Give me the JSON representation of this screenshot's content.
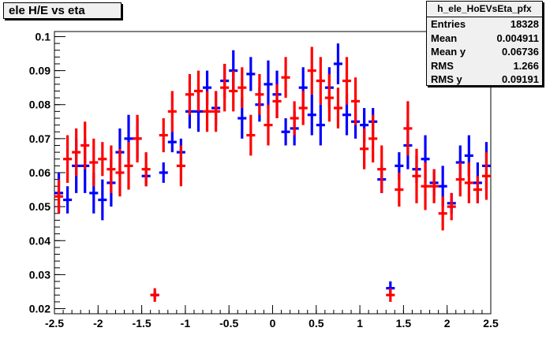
{
  "title": "ele H/E vs eta",
  "stats": {
    "name": "h_ele_HoEVsEta_pfx",
    "rows": [
      {
        "label": "Entries",
        "value": "18328"
      },
      {
        "label": "Mean",
        "value": "0.004911"
      },
      {
        "label": "Mean y",
        "value": "0.06736"
      },
      {
        "label": "RMS",
        "value": "1.266"
      },
      {
        "label": "RMS y",
        "value": "0.09191"
      }
    ]
  },
  "chart_data": {
    "type": "scatter",
    "title": "ele H/E vs eta",
    "xlabel": "",
    "ylabel": "",
    "xlim": [
      -2.5,
      2.5
    ],
    "ylim": [
      0.0185,
      0.1015
    ],
    "x_ticks": [
      "-2.5",
      "-2",
      "-1.5",
      "-1",
      "-0.5",
      "0",
      "0.5",
      "1",
      "1.5",
      "2",
      "2.5"
    ],
    "y_ticks": [
      "0.02",
      "0.03",
      "0.04",
      "0.05",
      "0.06",
      "0.07",
      "0.08",
      "0.09",
      "0.1"
    ],
    "bin_half_width": 0.05,
    "grid": false,
    "series": [
      {
        "color": "#0000ff",
        "points": [
          {
            "x": -2.45,
            "y": 0.054,
            "err": 0.006
          },
          {
            "x": -2.35,
            "y": 0.052,
            "err": 0.004
          },
          {
            "x": -2.25,
            "y": 0.062,
            "err": 0.008
          },
          {
            "x": -2.15,
            "y": 0.062,
            "err": 0.008
          },
          {
            "x": -2.05,
            "y": 0.054,
            "err": 0.006
          },
          {
            "x": -1.95,
            "y": 0.052,
            "err": 0.006
          },
          {
            "x": -1.85,
            "y": 0.057,
            "err": 0.007
          },
          {
            "x": -1.75,
            "y": 0.066,
            "err": 0.007
          },
          {
            "x": -1.65,
            "y": 0.07,
            "err": 0.007
          },
          {
            "x": -1.55,
            "y": 0.07,
            "err": 0.006
          },
          {
            "x": -1.45,
            "y": 0.059,
            "err": 0.003
          },
          {
            "x": -1.35,
            "y": 0.024,
            "err": 0.001
          },
          {
            "x": -1.25,
            "y": 0.06,
            "err": 0.003
          },
          {
            "x": -1.15,
            "y": 0.069,
            "err": 0.003
          },
          {
            "x": -1.05,
            "y": 0.066,
            "err": 0.004
          },
          {
            "x": -0.95,
            "y": 0.078,
            "err": 0.005
          },
          {
            "x": -0.85,
            "y": 0.078,
            "err": 0.006
          },
          {
            "x": -0.75,
            "y": 0.085,
            "err": 0.005
          },
          {
            "x": -0.65,
            "y": 0.079,
            "err": 0.005
          },
          {
            "x": -0.55,
            "y": 0.087,
            "err": 0.005
          },
          {
            "x": -0.45,
            "y": 0.09,
            "err": 0.006
          },
          {
            "x": -0.35,
            "y": 0.076,
            "err": 0.006
          },
          {
            "x": -0.25,
            "y": 0.089,
            "err": 0.005
          },
          {
            "x": -0.15,
            "y": 0.08,
            "err": 0.005
          },
          {
            "x": -0.05,
            "y": 0.086,
            "err": 0.007
          },
          {
            "x": 0.05,
            "y": 0.083,
            "err": 0.007
          },
          {
            "x": 0.15,
            "y": 0.072,
            "err": 0.004
          },
          {
            "x": 0.25,
            "y": 0.073,
            "err": 0.005
          },
          {
            "x": 0.35,
            "y": 0.085,
            "err": 0.006
          },
          {
            "x": 0.45,
            "y": 0.077,
            "err": 0.006
          },
          {
            "x": 0.55,
            "y": 0.074,
            "err": 0.006
          },
          {
            "x": 0.65,
            "y": 0.085,
            "err": 0.006
          },
          {
            "x": 0.75,
            "y": 0.092,
            "err": 0.006
          },
          {
            "x": 0.85,
            "y": 0.077,
            "err": 0.006
          },
          {
            "x": 0.95,
            "y": 0.075,
            "err": 0.005
          },
          {
            "x": 1.05,
            "y": 0.074,
            "err": 0.005
          },
          {
            "x": 1.15,
            "y": 0.075,
            "err": 0.004
          },
          {
            "x": 1.25,
            "y": 0.058,
            "err": 0.004
          },
          {
            "x": 1.35,
            "y": 0.026,
            "err": 0.002
          },
          {
            "x": 1.45,
            "y": 0.062,
            "err": 0.004
          },
          {
            "x": 1.55,
            "y": 0.068,
            "err": 0.007
          },
          {
            "x": 1.65,
            "y": 0.061,
            "err": 0.004
          },
          {
            "x": 1.75,
            "y": 0.064,
            "err": 0.007
          },
          {
            "x": 1.85,
            "y": 0.057,
            "err": 0.004
          },
          {
            "x": 1.95,
            "y": 0.056,
            "err": 0.006
          },
          {
            "x": 2.05,
            "y": 0.051,
            "err": 0.003
          },
          {
            "x": 2.15,
            "y": 0.063,
            "err": 0.005
          },
          {
            "x": 2.25,
            "y": 0.065,
            "err": 0.006
          },
          {
            "x": 2.35,
            "y": 0.057,
            "err": 0.006
          },
          {
            "x": 2.45,
            "y": 0.062,
            "err": 0.007
          }
        ]
      },
      {
        "color": "#ff0000",
        "points": [
          {
            "x": -2.45,
            "y": 0.053,
            "err": 0.005
          },
          {
            "x": -2.35,
            "y": 0.064,
            "err": 0.007
          },
          {
            "x": -2.25,
            "y": 0.066,
            "err": 0.007
          },
          {
            "x": -2.15,
            "y": 0.068,
            "err": 0.007
          },
          {
            "x": -2.05,
            "y": 0.063,
            "err": 0.007
          },
          {
            "x": -1.95,
            "y": 0.064,
            "err": 0.005
          },
          {
            "x": -1.85,
            "y": 0.061,
            "err": 0.007
          },
          {
            "x": -1.75,
            "y": 0.06,
            "err": 0.007
          },
          {
            "x": -1.65,
            "y": 0.062,
            "err": 0.007
          },
          {
            "x": -1.55,
            "y": 0.07,
            "err": 0.007
          },
          {
            "x": -1.45,
            "y": 0.061,
            "err": 0.005
          },
          {
            "x": -1.35,
            "y": 0.024,
            "err": 0.002
          },
          {
            "x": -1.25,
            "y": 0.071,
            "err": 0.005
          },
          {
            "x": -1.15,
            "y": 0.078,
            "err": 0.006
          },
          {
            "x": -1.05,
            "y": 0.062,
            "err": 0.006
          },
          {
            "x": -0.95,
            "y": 0.083,
            "err": 0.006
          },
          {
            "x": -0.85,
            "y": 0.084,
            "err": 0.006
          },
          {
            "x": -0.75,
            "y": 0.078,
            "err": 0.006
          },
          {
            "x": -0.65,
            "y": 0.078,
            "err": 0.006
          },
          {
            "x": -0.55,
            "y": 0.085,
            "err": 0.007
          },
          {
            "x": -0.45,
            "y": 0.084,
            "err": 0.006
          },
          {
            "x": -0.35,
            "y": 0.085,
            "err": 0.006
          },
          {
            "x": -0.25,
            "y": 0.071,
            "err": 0.006
          },
          {
            "x": -0.15,
            "y": 0.083,
            "err": 0.006
          },
          {
            "x": -0.05,
            "y": 0.074,
            "err": 0.006
          },
          {
            "x": 0.05,
            "y": 0.081,
            "err": 0.005
          },
          {
            "x": 0.15,
            "y": 0.088,
            "err": 0.006
          },
          {
            "x": 0.25,
            "y": 0.076,
            "err": 0.005
          },
          {
            "x": 0.35,
            "y": 0.079,
            "err": 0.005
          },
          {
            "x": 0.45,
            "y": 0.09,
            "err": 0.007
          },
          {
            "x": 0.55,
            "y": 0.087,
            "err": 0.007
          },
          {
            "x": 0.65,
            "y": 0.082,
            "err": 0.007
          },
          {
            "x": 0.75,
            "y": 0.079,
            "err": 0.006
          },
          {
            "x": 0.85,
            "y": 0.087,
            "err": 0.007
          },
          {
            "x": 0.95,
            "y": 0.081,
            "err": 0.007
          },
          {
            "x": 1.05,
            "y": 0.067,
            "err": 0.006
          },
          {
            "x": 1.15,
            "y": 0.07,
            "err": 0.007
          },
          {
            "x": 1.25,
            "y": 0.061,
            "err": 0.007
          },
          {
            "x": 1.35,
            "y": 0.024,
            "err": 0.002
          },
          {
            "x": 1.45,
            "y": 0.055,
            "err": 0.005
          },
          {
            "x": 1.55,
            "y": 0.073,
            "err": 0.008
          },
          {
            "x": 1.65,
            "y": 0.059,
            "err": 0.008
          },
          {
            "x": 1.75,
            "y": 0.056,
            "err": 0.007
          },
          {
            "x": 1.85,
            "y": 0.056,
            "err": 0.005
          },
          {
            "x": 1.95,
            "y": 0.048,
            "err": 0.005
          },
          {
            "x": 2.05,
            "y": 0.05,
            "err": 0.004
          },
          {
            "x": 2.15,
            "y": 0.058,
            "err": 0.005
          },
          {
            "x": 2.25,
            "y": 0.057,
            "err": 0.006
          },
          {
            "x": 2.35,
            "y": 0.055,
            "err": 0.004
          },
          {
            "x": 2.45,
            "y": 0.059,
            "err": 0.007
          }
        ]
      }
    ]
  }
}
